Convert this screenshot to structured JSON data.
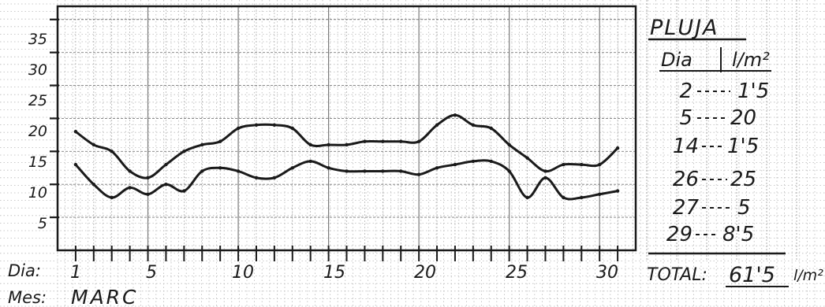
{
  "chart_data": {
    "type": "line",
    "x": [
      1,
      2,
      3,
      4,
      5,
      6,
      7,
      8,
      9,
      10,
      11,
      12,
      13,
      14,
      15,
      16,
      17,
      18,
      19,
      20,
      21,
      22,
      23,
      24,
      25,
      26,
      27,
      28,
      29,
      30,
      31
    ],
    "series": [
      {
        "values": [
          18,
          16,
          15,
          12,
          11,
          13,
          15,
          16,
          16.5,
          18.5,
          19,
          19,
          18.5,
          16,
          16,
          16,
          16.5,
          16.5,
          16.5,
          16.5,
          19,
          20.5,
          19,
          18.5,
          16,
          14,
          12,
          13,
          13,
          13,
          15.5
        ]
      },
      {
        "values": [
          13,
          10,
          8,
          9.5,
          8.5,
          10,
          9,
          12,
          12.5,
          12,
          11,
          11,
          12.5,
          13.5,
          12.5,
          12,
          12,
          12,
          12,
          11.5,
          12.5,
          13,
          13.5,
          13.5,
          12,
          8,
          11,
          8,
          8,
          8.5,
          9
        ]
      }
    ],
    "ylim": [
      0,
      37
    ],
    "xlim": [
      0,
      32
    ],
    "y_ticks": [
      "5",
      "10",
      "15",
      "20",
      "25",
      "30",
      "35"
    ],
    "x_tick_labels": [
      {
        "x": 1,
        "label": "1"
      },
      {
        "x": 5,
        "label": "5"
      },
      {
        "x": 10,
        "label": "10"
      },
      {
        "x": 15,
        "label": "15"
      },
      {
        "x": 20,
        "label": "20"
      },
      {
        "x": 25,
        "label": "25"
      },
      {
        "x": 30,
        "label": "30"
      }
    ],
    "grid": true,
    "row_labels": {
      "day": "Dia:",
      "month": "Mes:"
    },
    "month_name": "MARC",
    "rain_table": {
      "title": "PLUJA",
      "headers": [
        "Dia",
        "l/m²"
      ],
      "rows": [
        {
          "day": "2",
          "amount": "1'5"
        },
        {
          "day": "5",
          "amount": "20"
        },
        {
          "day": "14",
          "amount": "1'5"
        },
        {
          "day": "26",
          "amount": "25"
        },
        {
          "day": "27",
          "amount": "5"
        },
        {
          "day": "29",
          "amount": "8'5"
        }
      ],
      "total_label": "TOTAL:",
      "total_value": "61'5",
      "total_unit": "l/m²"
    },
    "colors": {
      "ink": "#1a1a1a",
      "grid": "#7a7a7a",
      "paper": "#ffffff"
    }
  }
}
